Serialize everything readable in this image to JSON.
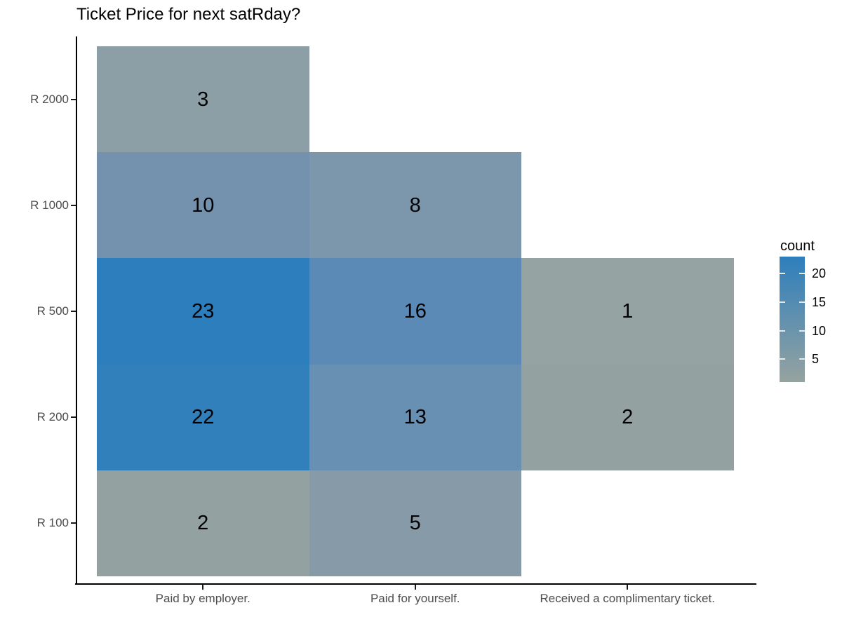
{
  "figure": {
    "background": "#ffffff",
    "axis_line_color": "#000000",
    "axis_text_color": "#4d4d4d",
    "label_text_color": "#000000"
  },
  "chart_data": {
    "type": "heatmap",
    "title": "Ticket Price for next satRday?",
    "xlabel": "",
    "ylabel": "",
    "grid": false,
    "x_categories": [
      "Paid by employer.",
      "Paid for yourself.",
      "Received a complimentary ticket."
    ],
    "y_categories": [
      "R 2000",
      "R 1000",
      "R 500",
      "R 200",
      "R 100"
    ],
    "cells": [
      {
        "x": "Paid by employer.",
        "y": "R 2000",
        "count": 3,
        "color": "#8c9fa6"
      },
      {
        "x": "Paid by employer.",
        "y": "R 1000",
        "count": 10,
        "color": "#7492ae"
      },
      {
        "x": "Paid for yourself.",
        "y": "R 1000",
        "count": 8,
        "color": "#7c96ab"
      },
      {
        "x": "Paid by employer.",
        "y": "R 500",
        "count": 23,
        "color": "#2d7ebc"
      },
      {
        "x": "Paid for yourself.",
        "y": "R 500",
        "count": 16,
        "color": "#5b8ab6"
      },
      {
        "x": "Received a complimentary ticket.",
        "y": "R 500",
        "count": 1,
        "color": "#95a3a2"
      },
      {
        "x": "Paid by employer.",
        "y": "R 200",
        "count": 22,
        "color": "#3280bb"
      },
      {
        "x": "Paid for yourself.",
        "y": "R 200",
        "count": 13,
        "color": "#6890b3"
      },
      {
        "x": "Received a complimentary ticket.",
        "y": "R 200",
        "count": 2,
        "color": "#93a1a1"
      },
      {
        "x": "Paid by employer.",
        "y": "R 100",
        "count": 2,
        "color": "#93a1a1"
      },
      {
        "x": "Paid for yourself.",
        "y": "R 100",
        "count": 5,
        "color": "#879aa8"
      }
    ],
    "legend": {
      "title": "count",
      "position": "right",
      "ticks": [
        20,
        15,
        10,
        5
      ],
      "min": 1,
      "max": 23,
      "gradient_high": "#2d7ebc",
      "gradient_low": "#96a3a0",
      "tick_mark_color": "#e4eae9"
    }
  }
}
